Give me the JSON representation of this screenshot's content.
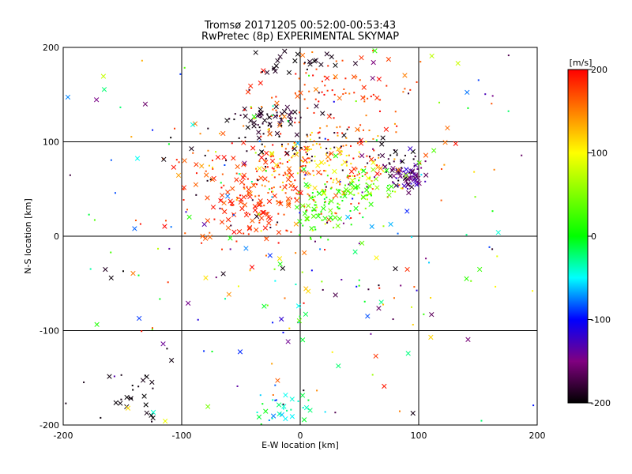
{
  "chart_data": {
    "type": "scatter",
    "title": "Tromsø 20171205 00:52:00-00:53:43",
    "subtitle": "RwPretec (8p) EXPERIMENTAL SKYMAP",
    "xlabel": "E-W location [km]",
    "ylabel": "N-S location [km]",
    "xlim": [
      -200,
      200
    ],
    "ylim": [
      -200,
      200
    ],
    "x_ticks": [
      "-200",
      "-100",
      "0",
      "100",
      "200"
    ],
    "y_ticks": [
      "-200",
      "-100",
      "0",
      "100",
      "200"
    ],
    "grid": true,
    "colorbar": {
      "unit": "[m/s]",
      "range": [
        -200,
        200
      ],
      "ticks": [
        "200",
        "100",
        "0",
        "-100",
        "-200"
      ]
    },
    "marker_types": [
      "x",
      "dot"
    ],
    "clusters": [
      {
        "cx": -30,
        "cy": 125,
        "sx": 15,
        "sy": 8,
        "n": 45,
        "vmin": -200,
        "vmax": -170,
        "xfrac": 0.6
      },
      {
        "cx": 90,
        "cy": 62,
        "sx": 8,
        "sy": 7,
        "n": 55,
        "vmin": -200,
        "vmax": -110,
        "xfrac": 0.6
      },
      {
        "cx": 75,
        "cy": 80,
        "sx": 18,
        "sy": 12,
        "n": 35,
        "vmin": -200,
        "vmax": -150,
        "xfrac": 0.3
      },
      {
        "cx": 30,
        "cy": 150,
        "sx": 35,
        "sy": 20,
        "n": 90,
        "vmin": 150,
        "vmax": 200,
        "xfrac": 0.2
      },
      {
        "cx": 0,
        "cy": 80,
        "sx": 50,
        "sy": 25,
        "n": 180,
        "vmin": 130,
        "vmax": 200,
        "xfrac": 0.2
      },
      {
        "cx": -40,
        "cy": 40,
        "sx": 30,
        "sy": 25,
        "n": 170,
        "vmin": 160,
        "vmax": 200,
        "xfrac": 0.6
      },
      {
        "cx": 15,
        "cy": 30,
        "sx": 10,
        "sy": 15,
        "n": 60,
        "vmin": 0,
        "vmax": 50,
        "xfrac": 0.4
      },
      {
        "cx": 50,
        "cy": 50,
        "sx": 15,
        "sy": 12,
        "n": 60,
        "vmin": 0,
        "vmax": 60,
        "xfrac": 0.4
      },
      {
        "cx": 20,
        "cy": 70,
        "sx": 25,
        "sy": 18,
        "n": 70,
        "vmin": 80,
        "vmax": 120,
        "xfrac": 0.2
      },
      {
        "cx": -20,
        "cy": 100,
        "sx": 40,
        "sy": 20,
        "n": 50,
        "vmin": -200,
        "vmax": -180,
        "xfrac": 0.3
      },
      {
        "cx": -15,
        "cy": -185,
        "sx": 15,
        "sy": 10,
        "n": 35,
        "vmin": -90,
        "vmax": 0,
        "xfrac": 0.5
      },
      {
        "cx": -145,
        "cy": -165,
        "sx": 20,
        "sy": 20,
        "n": 30,
        "vmin": -200,
        "vmax": -190,
        "xfrac": 0.4
      },
      {
        "cx": -10,
        "cy": 185,
        "sx": 25,
        "sy": 10,
        "n": 25,
        "vmin": -200,
        "vmax": -185,
        "xfrac": 0.7
      },
      {
        "cx": 0,
        "cy": 0,
        "sx": 110,
        "sy": 110,
        "n": 320,
        "vmin": -200,
        "vmax": 200,
        "xfrac": 0.35
      }
    ]
  }
}
